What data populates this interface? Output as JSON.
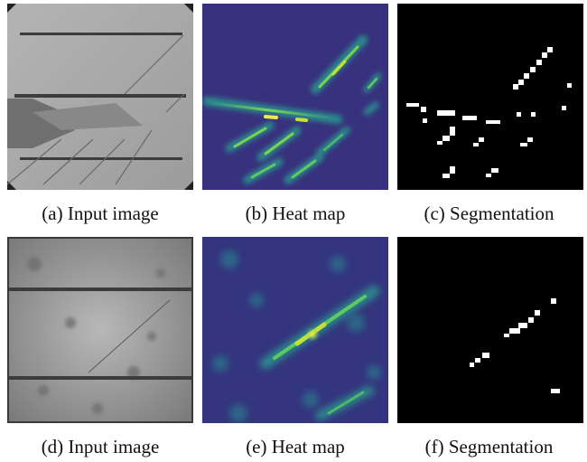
{
  "figure": {
    "rows": [
      {
        "panels": [
          {
            "id": "a",
            "caption": "(a) Input image",
            "kind": "el-image"
          },
          {
            "id": "b",
            "caption": "(b) Heat map",
            "kind": "heat-map"
          },
          {
            "id": "c",
            "caption": "(c) Segmentation",
            "kind": "segmentation-mask"
          }
        ]
      },
      {
        "panels": [
          {
            "id": "d",
            "caption": "(d) Input image",
            "kind": "el-image"
          },
          {
            "id": "e",
            "caption": "(e) Heat map",
            "kind": "heat-map"
          },
          {
            "id": "f",
            "caption": "(f) Segmentation",
            "kind": "segmentation-mask"
          }
        ]
      }
    ],
    "colors": {
      "cell_bg": "#a9a9a9",
      "busbar": "#3c3c3c",
      "heat_low": "#3b1f6e",
      "heat_mid": "#2b8a8c",
      "heat_high": "#f5e94a",
      "mask_bg": "#000000",
      "mask_fg": "#ffffff"
    }
  }
}
